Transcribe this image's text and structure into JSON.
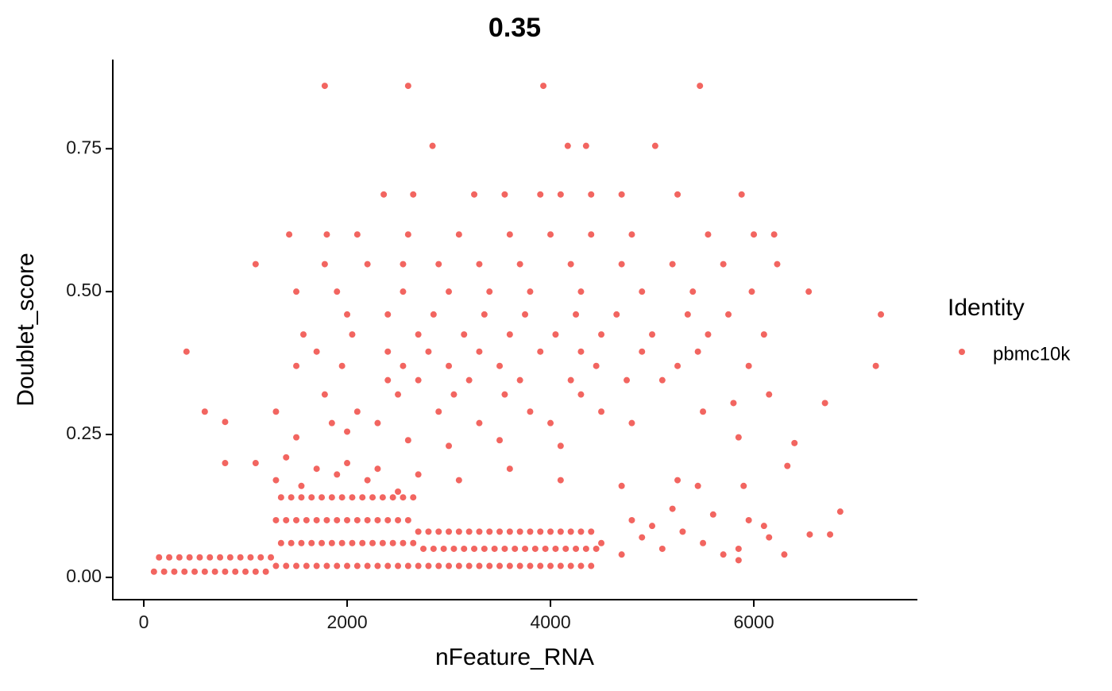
{
  "chart_data": {
    "type": "scatter",
    "title": "0.35",
    "x_label": "nFeature_RNA",
    "y_label": "Doublet_score",
    "legend_title": "Identity",
    "legend_position": "right",
    "xlim": [
      -305,
      7609
    ],
    "ylim": [
      -0.039,
      0.906
    ],
    "xticks": [
      0,
      2000,
      4000,
      6000
    ],
    "yticks": [
      {
        "value": 0,
        "label": "0.00"
      },
      {
        "value": 0.25,
        "label": "0.25"
      },
      {
        "value": 0.5,
        "label": "0.50"
      },
      {
        "value": 0.75,
        "label": "0.75"
      }
    ],
    "grid": false,
    "series": [
      {
        "name": "pbmc10k",
        "color": "#F26560",
        "x": [
          1300,
          1400,
          1500,
          1600,
          1700,
          1800,
          1900,
          2000,
          2100,
          2200,
          2300,
          2400,
          2500,
          2600,
          1350,
          1450,
          1550,
          1650,
          1750,
          1850,
          1950,
          2050,
          2150,
          2250,
          2350,
          2450,
          2550,
          2650,
          1300,
          1400,
          1500,
          1600,
          1700,
          1800,
          1900,
          2000,
          2100,
          2200,
          2300,
          2400,
          2500,
          2600,
          1350,
          1450,
          1550,
          1650,
          1750,
          1850,
          1950,
          2050,
          2150,
          2250,
          2350,
          2450,
          2550,
          2650,
          2700,
          2800,
          2900,
          3000,
          3100,
          3200,
          3300,
          3400,
          3500,
          3600,
          3700,
          3800,
          3900,
          4000,
          4100,
          4200,
          4300,
          4400,
          2750,
          2850,
          2950,
          3050,
          3150,
          3250,
          3350,
          3450,
          3550,
          3650,
          3750,
          3850,
          3950,
          4050,
          4150,
          4250,
          4350,
          4450,
          2700,
          2800,
          2900,
          3000,
          3100,
          3200,
          3300,
          3400,
          3500,
          3600,
          3700,
          3800,
          3900,
          4000,
          4100,
          4200,
          4300,
          4400,
          100,
          200,
          300,
          400,
          500,
          600,
          700,
          800,
          900,
          1000,
          1100,
          1200,
          150,
          250,
          350,
          450,
          550,
          650,
          750,
          850,
          950,
          1050,
          1150,
          1250,
          1780,
          2600,
          3930,
          5470,
          2840,
          4170,
          4350,
          5030,
          2360,
          2650,
          3250,
          3550,
          3900,
          4100,
          4400,
          4700,
          5250,
          5880,
          1430,
          1800,
          2100,
          2600,
          3100,
          3600,
          4000,
          4400,
          4800,
          5550,
          6000,
          6200,
          1100,
          1780,
          2200,
          2550,
          2900,
          3300,
          3700,
          4200,
          4700,
          5200,
          5700,
          6230,
          1500,
          1900,
          2550,
          3000,
          3400,
          3800,
          4300,
          4900,
          5400,
          5980,
          6540,
          2000,
          2400,
          2850,
          3350,
          3750,
          4250,
          4650,
          5350,
          5750,
          7250,
          1570,
          2050,
          2700,
          3150,
          3600,
          4050,
          4500,
          5000,
          5550,
          6100,
          420,
          1700,
          2400,
          2800,
          3300,
          3900,
          4300,
          4900,
          5450,
          1500,
          1950,
          2550,
          3000,
          3500,
          4450,
          5250,
          5950,
          7200,
          2400,
          2700,
          3200,
          3700,
          4200,
          4750,
          5100,
          1780,
          2500,
          3050,
          3550,
          4300,
          6150,
          600,
          1300,
          2100,
          2900,
          3800,
          4500,
          5500,
          5800,
          6700,
          800,
          1850,
          2300,
          3300,
          4000,
          4800,
          1500,
          2000,
          2600,
          3000,
          3500,
          4100,
          5850,
          6400,
          6330,
          800,
          1100,
          1400,
          1700,
          2000,
          2300,
          2700,
          3100,
          3600,
          4100,
          4700,
          5250,
          5450,
          5900,
          1300,
          1550,
          1900,
          2200,
          2500,
          4500,
          4700,
          4900,
          5100,
          5300,
          5500,
          5700,
          5850,
          5850,
          6100,
          6150,
          6550,
          6750,
          6850,
          6300,
          5600,
          5000,
          5200,
          4800,
          5950
        ],
        "values": [
          0.02,
          0.02,
          0.02,
          0.02,
          0.02,
          0.02,
          0.02,
          0.02,
          0.02,
          0.02,
          0.02,
          0.02,
          0.02,
          0.02,
          0.06,
          0.06,
          0.06,
          0.06,
          0.06,
          0.06,
          0.06,
          0.06,
          0.06,
          0.06,
          0.06,
          0.06,
          0.06,
          0.06,
          0.1,
          0.1,
          0.1,
          0.1,
          0.1,
          0.1,
          0.1,
          0.1,
          0.1,
          0.1,
          0.1,
          0.1,
          0.1,
          0.1,
          0.14,
          0.14,
          0.14,
          0.14,
          0.14,
          0.14,
          0.14,
          0.14,
          0.14,
          0.14,
          0.14,
          0.14,
          0.14,
          0.14,
          0.02,
          0.02,
          0.02,
          0.02,
          0.02,
          0.02,
          0.02,
          0.02,
          0.02,
          0.02,
          0.02,
          0.02,
          0.02,
          0.02,
          0.02,
          0.02,
          0.02,
          0.02,
          0.05,
          0.05,
          0.05,
          0.05,
          0.05,
          0.05,
          0.05,
          0.05,
          0.05,
          0.05,
          0.05,
          0.05,
          0.05,
          0.05,
          0.05,
          0.05,
          0.05,
          0.05,
          0.08,
          0.08,
          0.08,
          0.08,
          0.08,
          0.08,
          0.08,
          0.08,
          0.08,
          0.08,
          0.08,
          0.08,
          0.08,
          0.08,
          0.08,
          0.08,
          0.08,
          0.08,
          0.01,
          0.01,
          0.01,
          0.01,
          0.01,
          0.01,
          0.01,
          0.01,
          0.01,
          0.01,
          0.01,
          0.01,
          0.035,
          0.035,
          0.035,
          0.035,
          0.035,
          0.035,
          0.035,
          0.035,
          0.035,
          0.035,
          0.035,
          0.035,
          0.86,
          0.86,
          0.86,
          0.86,
          0.755,
          0.755,
          0.755,
          0.755,
          0.67,
          0.67,
          0.67,
          0.67,
          0.67,
          0.67,
          0.67,
          0.67,
          0.67,
          0.67,
          0.6,
          0.6,
          0.6,
          0.6,
          0.6,
          0.6,
          0.6,
          0.6,
          0.6,
          0.6,
          0.6,
          0.6,
          0.548,
          0.548,
          0.548,
          0.548,
          0.548,
          0.548,
          0.548,
          0.548,
          0.548,
          0.548,
          0.548,
          0.548,
          0.5,
          0.5,
          0.5,
          0.5,
          0.5,
          0.5,
          0.5,
          0.5,
          0.5,
          0.5,
          0.5,
          0.46,
          0.46,
          0.46,
          0.46,
          0.46,
          0.46,
          0.46,
          0.46,
          0.46,
          0.46,
          0.425,
          0.425,
          0.425,
          0.425,
          0.425,
          0.425,
          0.425,
          0.425,
          0.425,
          0.425,
          0.395,
          0.395,
          0.395,
          0.395,
          0.395,
          0.395,
          0.395,
          0.395,
          0.395,
          0.37,
          0.37,
          0.37,
          0.37,
          0.37,
          0.37,
          0.37,
          0.37,
          0.37,
          0.345,
          0.345,
          0.345,
          0.345,
          0.345,
          0.345,
          0.345,
          0.32,
          0.32,
          0.32,
          0.32,
          0.32,
          0.32,
          0.29,
          0.29,
          0.29,
          0.29,
          0.29,
          0.29,
          0.29,
          0.305,
          0.305,
          0.272,
          0.27,
          0.27,
          0.27,
          0.27,
          0.27,
          0.245,
          0.255,
          0.24,
          0.23,
          0.24,
          0.23,
          0.245,
          0.235,
          0.195,
          0.2,
          0.2,
          0.21,
          0.19,
          0.2,
          0.19,
          0.18,
          0.17,
          0.19,
          0.17,
          0.16,
          0.17,
          0.16,
          0.16,
          0.17,
          0.16,
          0.18,
          0.17,
          0.15,
          0.06,
          0.04,
          0.07,
          0.05,
          0.08,
          0.06,
          0.04,
          0.03,
          0.05,
          0.09,
          0.07,
          0.075,
          0.075,
          0.115,
          0.04,
          0.11,
          0.09,
          0.12,
          0.1,
          0.1
        ]
      }
    ]
  }
}
